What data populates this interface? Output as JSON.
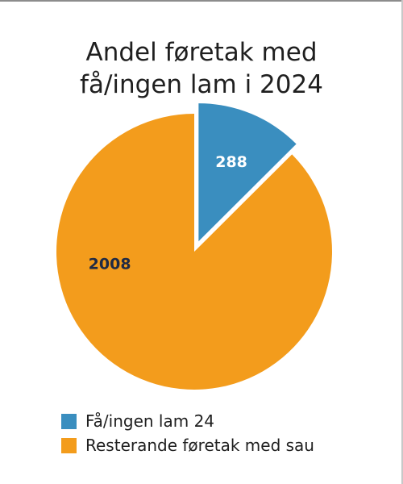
{
  "chart_data": {
    "type": "pie",
    "title_lines": [
      "Andel føretak med",
      "få/ingen lam i 2024"
    ],
    "slices": [
      {
        "label": "Få/ingen lam 24",
        "value": 288,
        "color": "#3a8ebf",
        "exploded": true
      },
      {
        "label": "Resterande føretak med sau",
        "value": 2008,
        "color": "#f39c1c",
        "exploded": false
      }
    ],
    "legend_position": "bottom-left",
    "data_labels": [
      "288",
      "2008"
    ]
  }
}
